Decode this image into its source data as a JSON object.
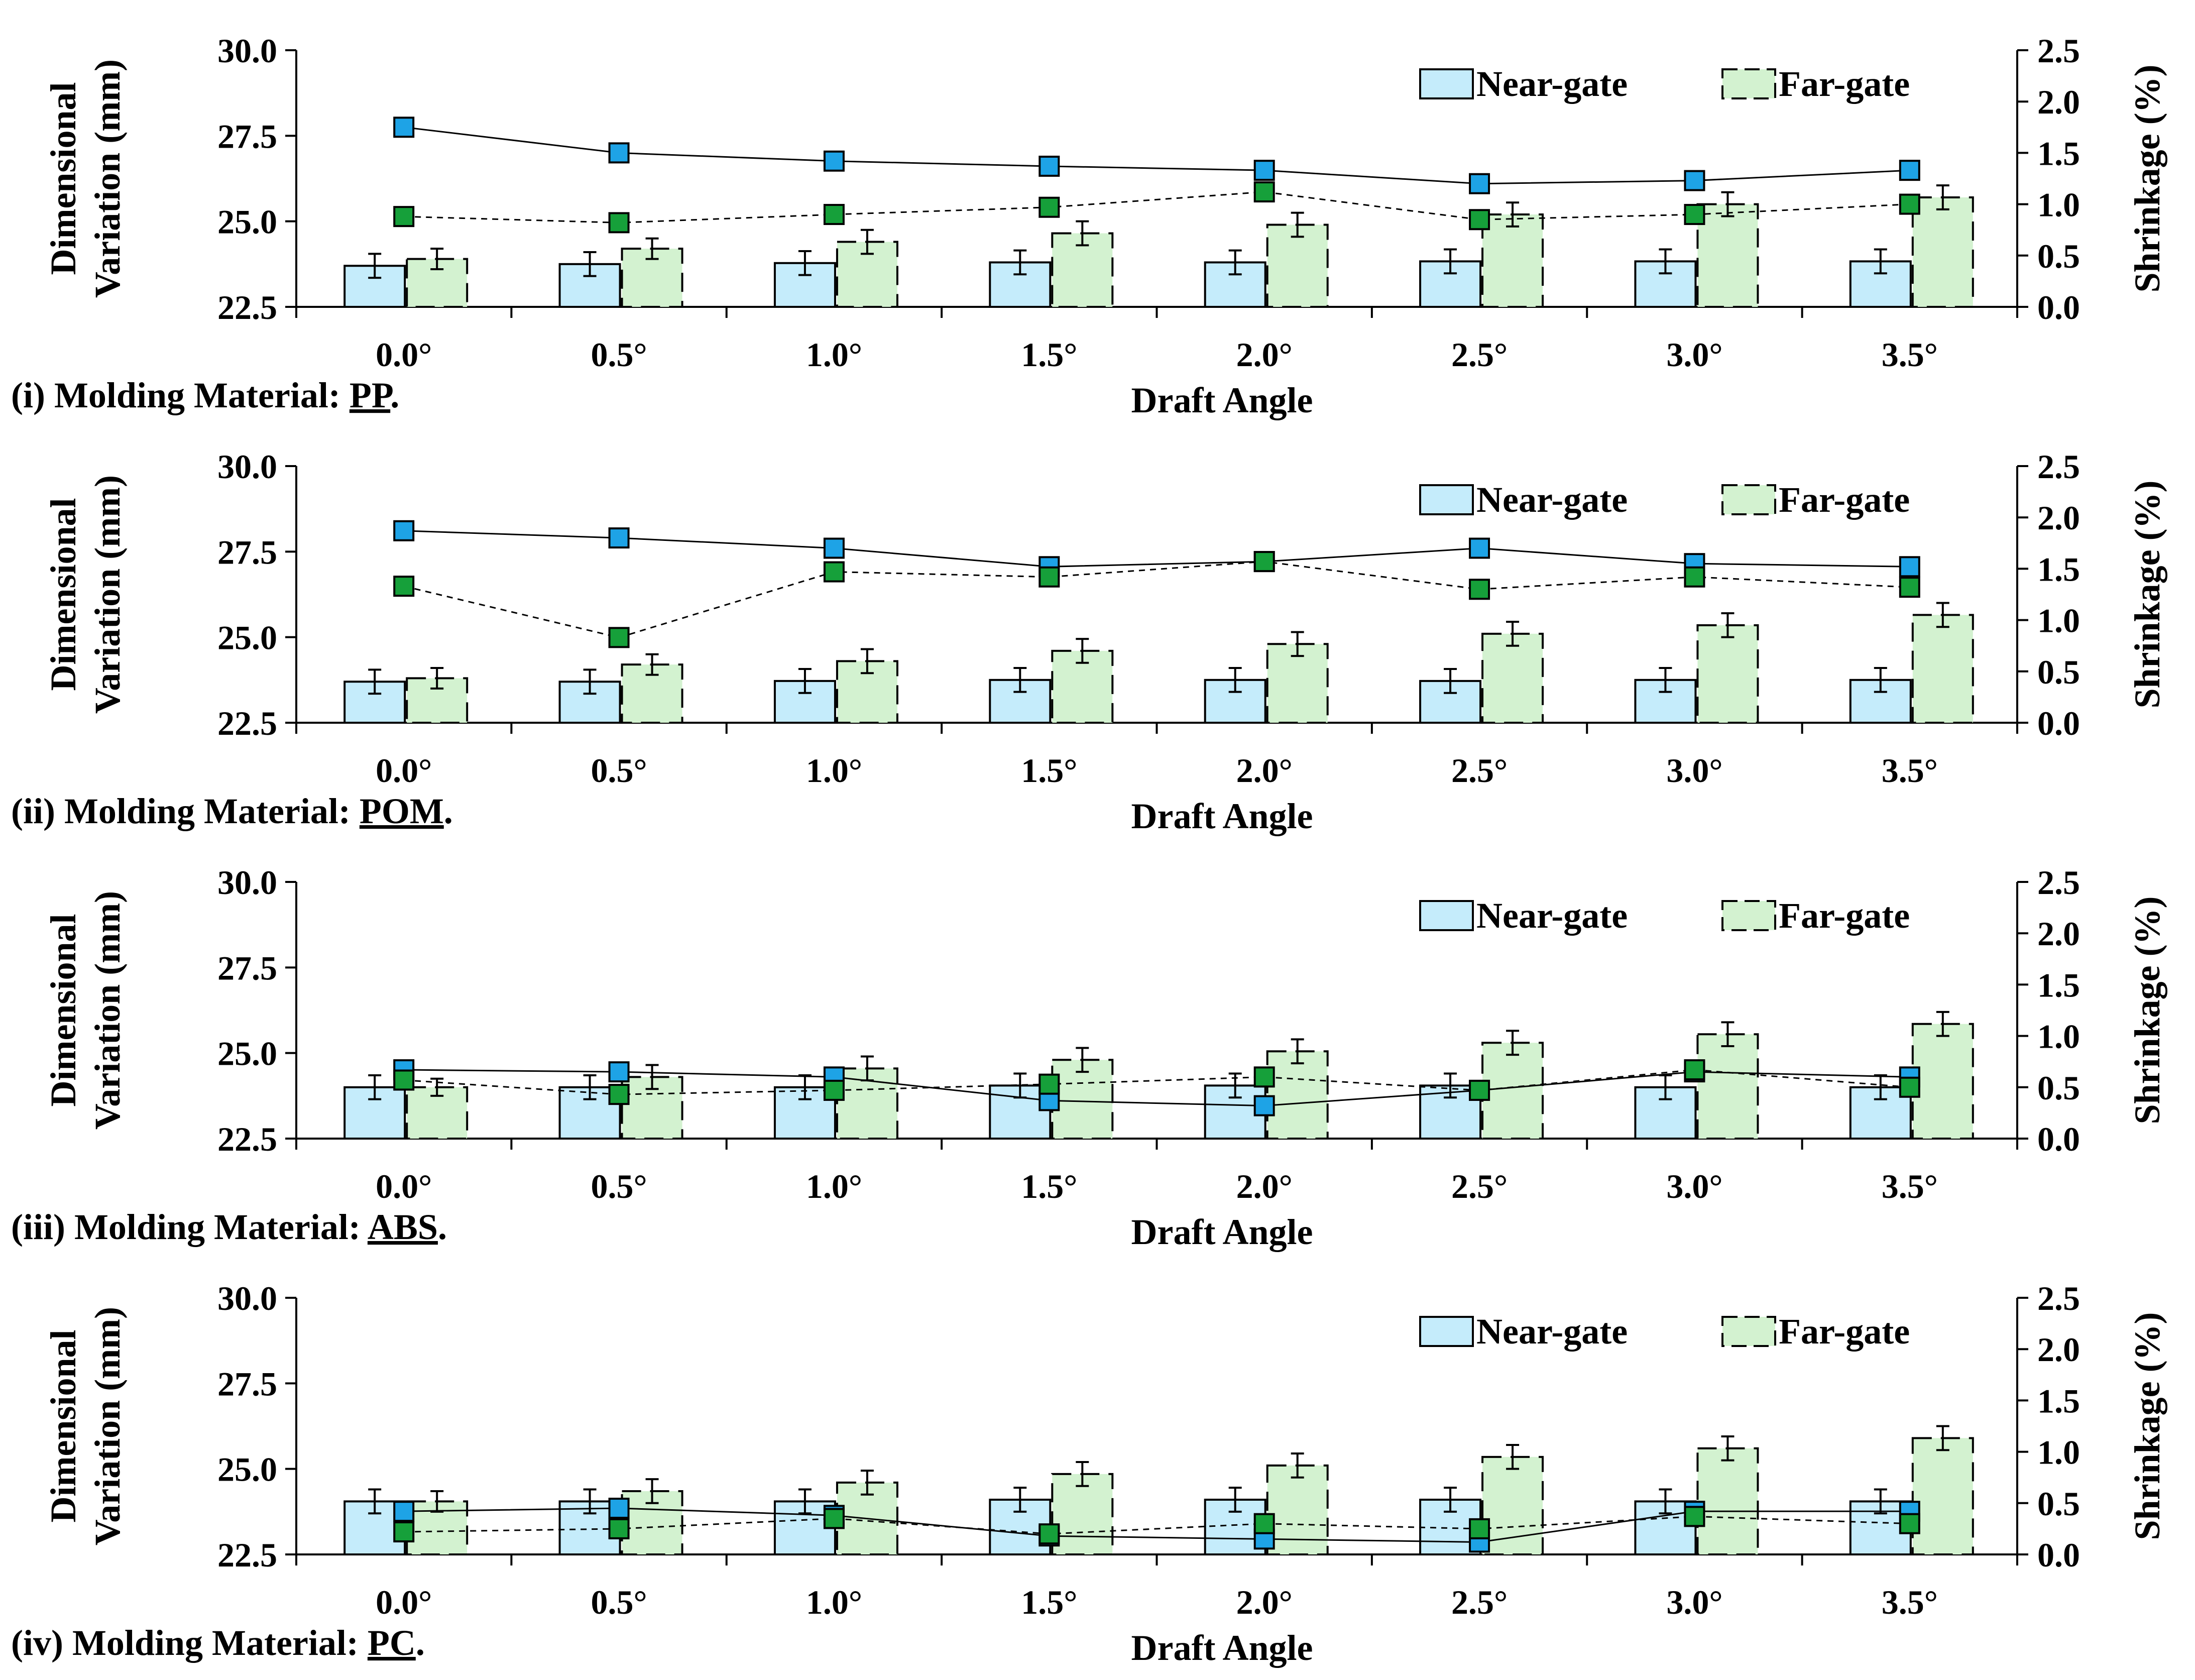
{
  "chart_data": [
    {
      "type": "bar",
      "panel_caption_prefix": "(i) Molding Material: ",
      "material": "PP",
      "panel_caption_suffix": ".",
      "xlabel": "Draft Angle",
      "ylabel_left_line1": "Dimensional",
      "ylabel_left_line2": "Variation (mm)",
      "ylabel_right": "Shrinkage (%)",
      "categories": [
        "0.0°",
        "0.5°",
        "1.0°",
        "1.5°",
        "2.0°",
        "2.5°",
        "3.0°",
        "3.5°"
      ],
      "ylim": [
        22.5,
        30.0
      ],
      "y_ticks": [
        "22.5",
        "25.0",
        "27.5",
        "30.0"
      ],
      "y2lim": [
        0.0,
        2.5
      ],
      "y2_ticks": [
        "0.0",
        "0.5",
        "1.0",
        "1.5",
        "2.0",
        "2.5"
      ],
      "legend": [
        "Near-gate",
        "Far-gate"
      ],
      "series": [
        {
          "name": "Near-gate",
          "axis": "left",
          "values": [
            23.7,
            23.75,
            23.78,
            23.8,
            23.8,
            23.83,
            23.83,
            23.83
          ],
          "errors": [
            0.35,
            0.35,
            0.35,
            0.35,
            0.35,
            0.35,
            0.35,
            0.35
          ]
        },
        {
          "name": "Far-gate",
          "axis": "left",
          "values": [
            23.9,
            24.2,
            24.4,
            24.65,
            24.9,
            25.2,
            25.5,
            25.7
          ],
          "errors": [
            0.3,
            0.3,
            0.35,
            0.35,
            0.35,
            0.35,
            0.35,
            0.35
          ]
        },
        {
          "name": "Near-gate shrinkage",
          "axis": "right",
          "values": [
            1.75,
            1.5,
            1.42,
            1.37,
            1.33,
            1.2,
            1.23,
            1.33
          ]
        },
        {
          "name": "Far-gate shrinkage",
          "axis": "right",
          "values": [
            0.88,
            0.82,
            0.9,
            0.97,
            1.12,
            0.85,
            0.9,
            1.0
          ]
        }
      ]
    },
    {
      "type": "bar",
      "panel_caption_prefix": "(ii) Molding Material: ",
      "material": "POM",
      "panel_caption_suffix": ".",
      "xlabel": "Draft Angle",
      "ylabel_left_line1": "Dimensional",
      "ylabel_left_line2": "Variation (mm)",
      "ylabel_right": "Shrinkage (%)",
      "categories": [
        "0.0°",
        "0.5°",
        "1.0°",
        "1.5°",
        "2.0°",
        "2.5°",
        "3.0°",
        "3.5°"
      ],
      "ylim": [
        22.5,
        30.0
      ],
      "y_ticks": [
        "22.5",
        "25.0",
        "27.5",
        "30.0"
      ],
      "y2lim": [
        0.0,
        2.5
      ],
      "y2_ticks": [
        "0.0",
        "0.5",
        "1.0",
        "1.5",
        "2.0",
        "2.5"
      ],
      "legend": [
        "Near-gate",
        "Far-gate"
      ],
      "series": [
        {
          "name": "Near-gate",
          "axis": "left",
          "values": [
            23.7,
            23.7,
            23.72,
            23.75,
            23.75,
            23.72,
            23.75,
            23.75
          ],
          "errors": [
            0.35,
            0.35,
            0.35,
            0.35,
            0.35,
            0.35,
            0.35,
            0.35
          ]
        },
        {
          "name": "Far-gate",
          "axis": "left",
          "values": [
            23.8,
            24.2,
            24.3,
            24.6,
            24.8,
            25.1,
            25.35,
            25.65
          ],
          "errors": [
            0.3,
            0.3,
            0.35,
            0.35,
            0.35,
            0.35,
            0.35,
            0.35
          ]
        },
        {
          "name": "Near-gate shrinkage",
          "axis": "right",
          "values": [
            1.87,
            1.8,
            1.7,
            1.52,
            1.57,
            1.7,
            1.55,
            1.52
          ]
        },
        {
          "name": "Far-gate shrinkage",
          "axis": "right",
          "values": [
            1.33,
            0.83,
            1.47,
            1.42,
            1.57,
            1.3,
            1.42,
            1.32
          ]
        }
      ]
    },
    {
      "type": "bar",
      "panel_caption_prefix": "(iii) Molding Material: ",
      "material": "ABS",
      "panel_caption_suffix": ".",
      "xlabel": "Draft Angle",
      "ylabel_left_line1": "Dimensional",
      "ylabel_left_line2": "Variation (mm)",
      "ylabel_right": "Shrinkage (%)",
      "categories": [
        "0.0°",
        "0.5°",
        "1.0°",
        "1.5°",
        "2.0°",
        "2.5°",
        "3.0°",
        "3.5°"
      ],
      "ylim": [
        22.5,
        30.0
      ],
      "y_ticks": [
        "22.5",
        "25.0",
        "27.5",
        "30.0"
      ],
      "y2lim": [
        0.0,
        2.5
      ],
      "y2_ticks": [
        "0.0",
        "0.5",
        "1.0",
        "1.5",
        "2.0",
        "2.5"
      ],
      "legend": [
        "Near-gate",
        "Far-gate"
      ],
      "series": [
        {
          "name": "Near-gate",
          "axis": "left",
          "values": [
            24.0,
            24.0,
            24.0,
            24.05,
            24.05,
            24.05,
            24.0,
            24.0
          ],
          "errors": [
            0.35,
            0.35,
            0.35,
            0.35,
            0.35,
            0.35,
            0.35,
            0.35
          ]
        },
        {
          "name": "Far-gate",
          "axis": "left",
          "values": [
            24.0,
            24.3,
            24.55,
            24.8,
            25.05,
            25.3,
            25.55,
            25.85
          ],
          "errors": [
            0.25,
            0.35,
            0.35,
            0.35,
            0.35,
            0.35,
            0.35,
            0.35
          ]
        },
        {
          "name": "Near-gate shrinkage",
          "axis": "right",
          "values": [
            0.67,
            0.65,
            0.6,
            0.37,
            0.32,
            0.47,
            0.65,
            0.6
          ]
        },
        {
          "name": "Far-gate shrinkage",
          "axis": "right",
          "values": [
            0.57,
            0.43,
            0.47,
            0.53,
            0.6,
            0.47,
            0.67,
            0.5
          ]
        }
      ]
    },
    {
      "type": "bar",
      "panel_caption_prefix": "(iv) Molding Material: ",
      "material": "PC",
      "panel_caption_suffix": ".",
      "xlabel": "Draft Angle",
      "ylabel_left_line1": "Dimensional",
      "ylabel_left_line2": "Variation (mm)",
      "ylabel_right": "Shrinkage (%)",
      "categories": [
        "0.0°",
        "0.5°",
        "1.0°",
        "1.5°",
        "2.0°",
        "2.5°",
        "3.0°",
        "3.5°"
      ],
      "ylim": [
        22.5,
        30.0
      ],
      "y_ticks": [
        "22.5",
        "25.0",
        "27.5",
        "30.0"
      ],
      "y2lim": [
        0.0,
        2.5
      ],
      "y2_ticks": [
        "0.0",
        "0.5",
        "1.0",
        "1.5",
        "2.0",
        "2.5"
      ],
      "legend": [
        "Near-gate",
        "Far-gate"
      ],
      "series": [
        {
          "name": "Near-gate",
          "axis": "left",
          "values": [
            24.05,
            24.05,
            24.05,
            24.1,
            24.1,
            24.1,
            24.05,
            24.05
          ],
          "errors": [
            0.35,
            0.35,
            0.35,
            0.35,
            0.35,
            0.35,
            0.35,
            0.35
          ]
        },
        {
          "name": "Far-gate",
          "axis": "left",
          "values": [
            24.05,
            24.35,
            24.6,
            24.85,
            25.1,
            25.35,
            25.6,
            25.9
          ],
          "errors": [
            0.3,
            0.35,
            0.35,
            0.35,
            0.35,
            0.35,
            0.35,
            0.35
          ]
        },
        {
          "name": "Near-gate shrinkage",
          "axis": "right",
          "values": [
            0.42,
            0.45,
            0.38,
            0.18,
            0.15,
            0.12,
            0.42,
            0.42
          ]
        },
        {
          "name": "Far-gate shrinkage",
          "axis": "right",
          "values": [
            0.22,
            0.25,
            0.35,
            0.2,
            0.3,
            0.25,
            0.37,
            0.3
          ]
        }
      ]
    }
  ],
  "colors": {
    "near_fill": "#c5ecfb",
    "far_fill": "#d3f2d0",
    "near_marker": "#1ea3e6",
    "far_marker": "#16a03a",
    "ink": "#000000"
  }
}
